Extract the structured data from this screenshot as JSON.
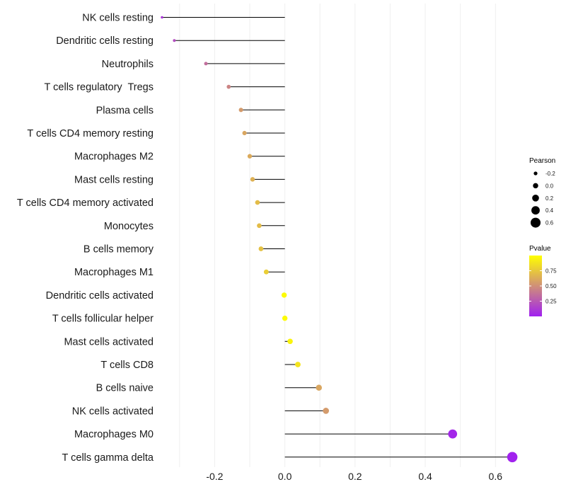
{
  "chart_data": {
    "type": "lollipop",
    "xlim": [
      -0.35,
      0.67
    ],
    "xticks": [
      -0.2,
      0.0,
      0.2,
      0.4,
      0.6
    ],
    "xtick_labels": [
      "-0.2",
      "0.0",
      "0.2",
      "0.4",
      "0.6"
    ],
    "grid": true,
    "categories": [
      "NK cells resting",
      "Dendritic cells resting",
      "Neutrophils",
      "T cells regulatory  Tregs",
      "Plasma cells",
      "T cells CD4 memory resting",
      "Macrophages M2",
      "Mast cells resting",
      "T cells CD4 memory activated",
      "Monocytes",
      "B cells memory",
      "Macrophages M1",
      "Dendritic cells activated",
      "T cells follicular helper",
      "Mast cells activated",
      "T cells CD8",
      "B cells naive",
      "NK cells activated",
      "Macrophages M0",
      "T cells gamma delta"
    ],
    "pearson": [
      -0.35,
      -0.315,
      -0.225,
      -0.16,
      -0.125,
      -0.115,
      -0.1,
      -0.092,
      -0.078,
      -0.073,
      -0.068,
      -0.053,
      -0.002,
      0.0,
      0.015,
      0.037,
      0.097,
      0.117,
      0.478,
      0.648
    ],
    "pvalue": [
      0.1,
      0.2,
      0.35,
      0.45,
      0.55,
      0.6,
      0.62,
      0.65,
      0.7,
      0.7,
      0.72,
      0.78,
      0.98,
      0.98,
      0.95,
      0.88,
      0.6,
      0.55,
      0.03,
      0.01
    ],
    "legend_size": {
      "title": "Pearson",
      "labels": [
        "-0.2",
        "0.0",
        "0.2",
        "0.4",
        "0.6"
      ],
      "values": [
        -0.2,
        0.0,
        0.2,
        0.4,
        0.6
      ]
    },
    "legend_color": {
      "title": "Pvalue",
      "labels": [
        "0.75",
        "0.50",
        "0.25"
      ],
      "values": [
        0.75,
        0.5,
        0.25
      ],
      "range": [
        0.0,
        1.0
      ],
      "low_color": "#a020f0",
      "high_color": "#ffff00"
    },
    "legend_placement": "right"
  }
}
